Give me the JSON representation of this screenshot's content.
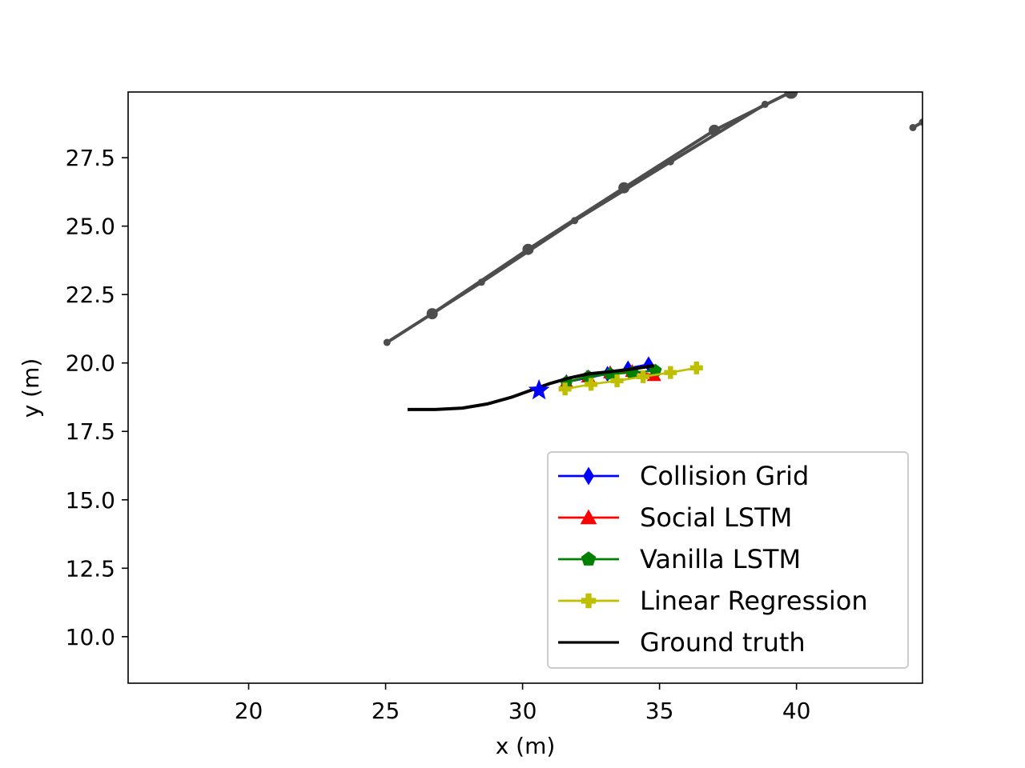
{
  "chart_data": {
    "type": "line",
    "title": "",
    "xlabel": "x (m)",
    "ylabel": "y (m)",
    "xlim": [
      15.6,
      44.6
    ],
    "ylim": [
      8.3,
      29.9
    ],
    "xticks": [
      20,
      25,
      30,
      35,
      40
    ],
    "yticks": [
      10.0,
      12.5,
      15.0,
      17.5,
      20.0,
      22.5,
      25.0,
      27.5
    ],
    "xtick_labels": [
      "20",
      "25",
      "30",
      "35",
      "40"
    ],
    "ytick_labels": [
      "10.0",
      "12.5",
      "15.0",
      "17.5",
      "20.0",
      "22.5",
      "25.0",
      "27.5"
    ],
    "grid": false,
    "legend_position": "lower-right",
    "start_point": {
      "x": 30.6,
      "y": 19.0,
      "color": "#0000ff",
      "marker": "star"
    },
    "series": [
      {
        "name": "Collision Grid",
        "color": "#0000ff",
        "marker": "thin-diamond",
        "x": [
          31.6,
          32.35,
          33.1,
          33.85,
          34.6
        ],
        "y": [
          19.3,
          19.45,
          19.6,
          19.8,
          19.95
        ]
      },
      {
        "name": "Social LSTM",
        "color": "#ff0000",
        "marker": "triangle",
        "x": [
          31.6,
          32.4,
          33.2,
          34.0,
          34.8
        ],
        "y": [
          19.3,
          19.5,
          19.65,
          19.7,
          19.55
        ]
      },
      {
        "name": "Vanilla LSTM",
        "color": "#008000",
        "marker": "pentagon",
        "x": [
          31.6,
          32.4,
          33.2,
          34.0,
          34.85
        ],
        "y": [
          19.3,
          19.5,
          19.6,
          19.65,
          19.72
        ]
      },
      {
        "name": "Linear Regression",
        "color": "#bfbf00",
        "marker": "plus",
        "x": [
          31.55,
          32.5,
          33.45,
          34.4,
          35.4,
          36.35
        ],
        "y": [
          19.05,
          19.22,
          19.35,
          19.5,
          19.65,
          19.82
        ]
      },
      {
        "name": "Ground truth",
        "color": "#000000",
        "marker": "none",
        "x": [
          25.8,
          26.8,
          27.8,
          28.7,
          29.6,
          30.3,
          31.0,
          31.7,
          32.4,
          33.2,
          34.0,
          34.8
        ],
        "y": [
          18.3,
          18.3,
          18.35,
          18.5,
          18.75,
          19.0,
          19.25,
          19.45,
          19.6,
          19.68,
          19.78,
          19.9
        ]
      }
    ],
    "neighbor_tracks": [
      {
        "color": "#4d4d4d",
        "x": [
          26.7,
          30.2,
          33.7,
          37.0,
          39.8
        ],
        "y": [
          21.8,
          24.15,
          26.4,
          28.5,
          29.9
        ]
      },
      {
        "color": "#4d4d4d",
        "x": [
          25.05,
          28.5,
          31.9,
          35.4,
          38.85
        ],
        "y": [
          20.75,
          22.95,
          25.2,
          27.35,
          29.45
        ]
      },
      {
        "color": "#4d4d4d",
        "x": [
          44.25,
          44.6
        ],
        "y": [
          28.6,
          28.8
        ]
      }
    ]
  }
}
